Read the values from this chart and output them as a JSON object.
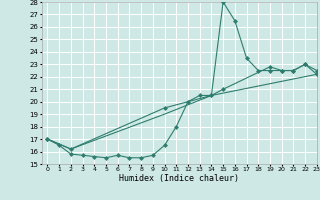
{
  "background_color": "#cde8e5",
  "grid_color": "#ffffff",
  "line_color": "#2e7d6e",
  "xlabel": "Humidex (Indice chaleur)",
  "ylim": [
    15,
    28
  ],
  "xlim": [
    -0.5,
    23
  ],
  "yticks": [
    15,
    16,
    17,
    18,
    19,
    20,
    21,
    22,
    23,
    24,
    25,
    26,
    27,
    28
  ],
  "xticks": [
    0,
    1,
    2,
    3,
    4,
    5,
    6,
    7,
    8,
    9,
    10,
    11,
    12,
    13,
    14,
    15,
    16,
    17,
    18,
    19,
    20,
    21,
    22,
    23
  ],
  "line1_x": [
    0,
    1,
    2,
    3,
    4,
    5,
    6,
    7,
    8,
    9,
    10,
    11,
    12,
    13,
    14,
    15,
    16,
    17,
    18,
    19,
    20,
    21,
    22,
    23
  ],
  "line1_y": [
    17,
    16.5,
    15.8,
    15.7,
    15.6,
    15.5,
    15.7,
    15.5,
    15.5,
    15.7,
    16.5,
    18.0,
    20.0,
    20.5,
    20.5,
    28.0,
    26.5,
    23.5,
    22.5,
    22.5,
    22.5,
    22.5,
    23.0,
    22.2
  ],
  "line2_x": [
    0,
    2,
    10,
    14,
    15,
    19,
    20,
    21,
    22,
    23
  ],
  "line2_y": [
    17,
    16.2,
    19.5,
    20.5,
    21.0,
    22.8,
    22.5,
    22.5,
    23.0,
    22.5
  ],
  "line3_x": [
    0,
    2,
    10,
    14,
    23
  ],
  "line3_y": [
    17,
    16.2,
    19.0,
    20.5,
    22.2
  ]
}
